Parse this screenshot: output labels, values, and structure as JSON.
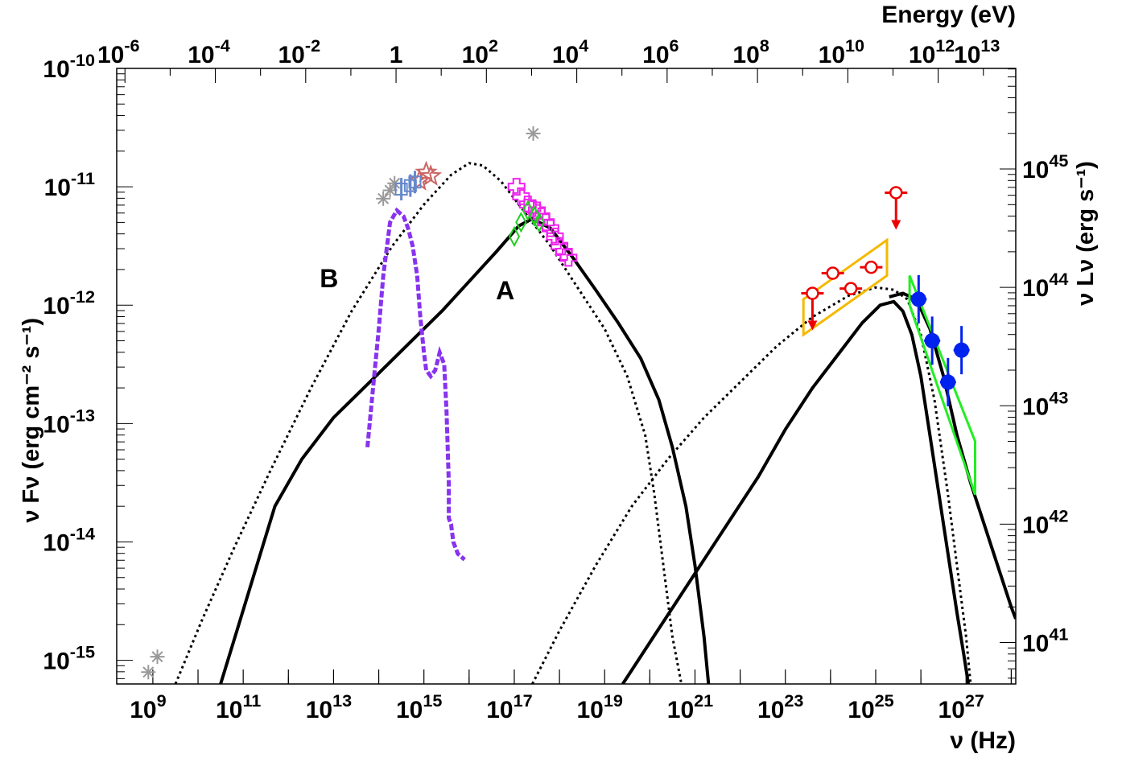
{
  "chart_data": {
    "type": "scatter",
    "title": "",
    "xlabel": "ν (Hz)",
    "ylabel": "ν Fν (erg cm⁻² s⁻¹)",
    "top_axis_label": "Energy (eV)",
    "right_axis_label": "ν Lν (erg s⁻¹)",
    "xscale": "log",
    "yscale": "log",
    "xlim_log10": [
      8.2,
      28.1
    ],
    "ylim_log10": [
      -15.2,
      -10.0
    ],
    "y2lim_log10": [
      40.65,
      45.85
    ],
    "grid": false,
    "legend": "none",
    "x_tick_labels": [
      {
        "base": "10",
        "exp": "9",
        "log": 9
      },
      {
        "base": "10",
        "exp": "11",
        "log": 11
      },
      {
        "base": "10",
        "exp": "13",
        "log": 13
      },
      {
        "base": "10",
        "exp": "15",
        "log": 15
      },
      {
        "base": "10",
        "exp": "17",
        "log": 17
      },
      {
        "base": "10",
        "exp": "19",
        "log": 19
      },
      {
        "base": "10",
        "exp": "21",
        "log": 21
      },
      {
        "base": "10",
        "exp": "23",
        "log": 23
      },
      {
        "base": "10",
        "exp": "25",
        "log": 25
      },
      {
        "base": "10",
        "exp": "27",
        "log": 27
      }
    ],
    "y_tick_labels": [
      {
        "base": "10",
        "exp": "-10",
        "log": -10
      },
      {
        "base": "10",
        "exp": "-11",
        "log": -11
      },
      {
        "base": "10",
        "exp": "-12",
        "log": -12
      },
      {
        "base": "10",
        "exp": "-13",
        "log": -13
      },
      {
        "base": "10",
        "exp": "-14",
        "log": -14
      },
      {
        "base": "10",
        "exp": "-15",
        "log": -15
      }
    ],
    "top_tick_labels": [
      {
        "base": "10",
        "exp": "-6",
        "log": -6
      },
      {
        "base": "10",
        "exp": "-4",
        "log": -4
      },
      {
        "base": "10",
        "exp": "-2",
        "log": -2
      },
      {
        "base": "1",
        "exp": "",
        "log": 0
      },
      {
        "base": "10",
        "exp": "2",
        "log": 2
      },
      {
        "base": "10",
        "exp": "4",
        "log": 4
      },
      {
        "base": "10",
        "exp": "6",
        "log": 6
      },
      {
        "base": "10",
        "exp": "8",
        "log": 8
      },
      {
        "base": "10",
        "exp": "10",
        "log": 10
      },
      {
        "base": "10",
        "exp": "12",
        "log": 12
      },
      {
        "base": "10",
        "exp": "13",
        "log": 13
      }
    ],
    "right_tick_labels": [
      {
        "base": "10",
        "exp": "45",
        "log": 45
      },
      {
        "base": "10",
        "exp": "44",
        "log": 44
      },
      {
        "base": "10",
        "exp": "43",
        "log": 43
      },
      {
        "base": "10",
        "exp": "42",
        "log": 42
      },
      {
        "base": "10",
        "exp": "41",
        "log": 41
      }
    ],
    "annotations": [
      {
        "text": "A",
        "x": 16.8,
        "y": -11.95
      },
      {
        "text": "B",
        "x": 12.9,
        "y": -11.85
      }
    ],
    "curves": [
      {
        "id": "A-sync",
        "style": "solid",
        "color": "#000000",
        "x": [
          10.5,
          10.9,
          11.3,
          11.7,
          12.3,
          13.0,
          13.8,
          14.6,
          15.4,
          16.0,
          16.6,
          17.1,
          17.4,
          17.8,
          18.3,
          18.8,
          19.3,
          19.8,
          20.2,
          20.5,
          20.8,
          21.0,
          21.2,
          21.3
        ],
        "y": [
          -15.2,
          -14.7,
          -14.2,
          -13.7,
          -13.3,
          -12.95,
          -12.65,
          -12.35,
          -12.05,
          -11.8,
          -11.55,
          -11.33,
          -11.27,
          -11.35,
          -11.6,
          -11.87,
          -12.15,
          -12.45,
          -12.8,
          -13.2,
          -13.7,
          -14.2,
          -14.8,
          -15.2
        ]
      },
      {
        "id": "A-ic",
        "style": "solid",
        "color": "#000000",
        "x": [
          19.4,
          20.0,
          20.6,
          21.2,
          21.8,
          22.4,
          23.0,
          23.6,
          24.2,
          24.7,
          25.1,
          25.4,
          25.6,
          25.8,
          26.0,
          26.2,
          26.4,
          26.6,
          26.8,
          26.95,
          27.05
        ],
        "y": [
          -15.2,
          -14.85,
          -14.5,
          -14.15,
          -13.8,
          -13.45,
          -13.05,
          -12.7,
          -12.4,
          -12.15,
          -12.0,
          -11.97,
          -12.05,
          -12.25,
          -12.6,
          -13.1,
          -13.6,
          -14.1,
          -14.6,
          -14.95,
          -15.2
        ]
      },
      {
        "id": "A-ic-upper",
        "style": "solid",
        "color": "#000000",
        "x": [
          25.3,
          25.6,
          25.9,
          26.2,
          26.5,
          26.8,
          27.1,
          27.4,
          27.7,
          28.0,
          28.1
        ],
        "y": [
          -11.93,
          -11.9,
          -11.95,
          -12.2,
          -12.6,
          -13.1,
          -13.5,
          -13.85,
          -14.2,
          -14.55,
          -14.65
        ]
      },
      {
        "id": "B-sync",
        "style": "dotted",
        "color": "#000000",
        "x": [
          9.5,
          10.1,
          10.8,
          11.6,
          12.5,
          13.4,
          14.3,
          15.0,
          15.6,
          16.0,
          16.3,
          16.7,
          17.2,
          17.8,
          18.4,
          19.0,
          19.5,
          19.9,
          20.1,
          20.3,
          20.5,
          20.7
        ],
        "y": [
          -15.2,
          -14.65,
          -14.05,
          -13.4,
          -12.7,
          -12.05,
          -11.5,
          -11.15,
          -10.9,
          -10.8,
          -10.82,
          -10.95,
          -11.2,
          -11.5,
          -11.85,
          -12.2,
          -12.6,
          -13.1,
          -13.6,
          -14.2,
          -14.8,
          -15.2
        ]
      },
      {
        "id": "B-ic",
        "style": "dotted",
        "color": "#000000",
        "x": [
          17.4,
          18.0,
          18.8,
          19.6,
          20.4,
          21.2,
          22.0,
          22.8,
          23.6,
          24.4,
          25.0,
          25.4,
          25.7,
          26.0,
          26.3,
          26.6,
          26.8,
          27.0,
          27.1
        ],
        "y": [
          -15.2,
          -14.75,
          -14.2,
          -13.7,
          -13.3,
          -12.95,
          -12.65,
          -12.35,
          -12.1,
          -11.92,
          -11.85,
          -11.87,
          -11.95,
          -12.25,
          -12.8,
          -13.6,
          -14.2,
          -14.8,
          -15.2
        ]
      }
    ],
    "series": [
      {
        "id": "radio-gray",
        "marker": "asterisk",
        "color": "#999999",
        "points": [
          {
            "x": 8.9,
            "y": -15.1
          },
          {
            "x": 9.1,
            "y": -14.97
          },
          {
            "x": 14.1,
            "y": -11.1
          },
          {
            "x": 14.25,
            "y": -11.03
          },
          {
            "x": 14.35,
            "y": -10.97
          },
          {
            "x": 17.42,
            "y": -10.55
          }
        ]
      },
      {
        "id": "optical-stars",
        "marker": "star",
        "color": "#cc6666",
        "points": [
          {
            "x": 14.9,
            "y": -10.95
          },
          {
            "x": 15.05,
            "y": -10.88
          },
          {
            "x": 15.15,
            "y": -10.91
          }
        ]
      },
      {
        "id": "optical-blue",
        "marker": "square",
        "color": "#6688cc",
        "points": [
          {
            "x": 14.5,
            "y": -11.02
          },
          {
            "x": 14.7,
            "y": -10.99
          },
          {
            "x": 14.8,
            "y": -10.96
          }
        ]
      },
      {
        "id": "xray-magenta",
        "marker": "open-cross",
        "color": "#ee22ee",
        "points": [
          {
            "x": 17.05,
            "y": -11.0
          },
          {
            "x": 17.15,
            "y": -11.08
          },
          {
            "x": 17.3,
            "y": -11.15
          },
          {
            "x": 17.4,
            "y": -11.18
          },
          {
            "x": 17.5,
            "y": -11.2
          },
          {
            "x": 17.6,
            "y": -11.25
          },
          {
            "x": 17.7,
            "y": -11.3
          },
          {
            "x": 17.8,
            "y": -11.35
          },
          {
            "x": 17.9,
            "y": -11.42
          },
          {
            "x": 18.0,
            "y": -11.5
          },
          {
            "x": 18.1,
            "y": -11.55
          },
          {
            "x": 18.2,
            "y": -11.6
          }
        ]
      },
      {
        "id": "xray-green",
        "marker": "open-diamond",
        "color": "#22cc22",
        "points": [
          {
            "x": 17.0,
            "y": -11.42
          },
          {
            "x": 17.15,
            "y": -11.3
          },
          {
            "x": 17.3,
            "y": -11.2
          },
          {
            "x": 17.45,
            "y": -11.25
          },
          {
            "x": 17.55,
            "y": -11.3
          }
        ]
      },
      {
        "id": "fermi-red",
        "marker": "open-circle",
        "color": "#ee0000",
        "points": [
          {
            "x": 23.6,
            "y": -11.9,
            "upper_limit": true
          },
          {
            "x": 24.05,
            "y": -11.73
          },
          {
            "x": 24.45,
            "y": -11.86
          },
          {
            "x": 24.9,
            "y": -11.68
          },
          {
            "x": 25.45,
            "y": -11.05,
            "upper_limit": true
          }
        ]
      },
      {
        "id": "tev-blue",
        "marker": "filled-circle",
        "color": "#0022ee",
        "points": [
          {
            "x": 25.95,
            "y": -11.95
          },
          {
            "x": 26.25,
            "y": -12.3
          },
          {
            "x": 26.6,
            "y": -12.65
          },
          {
            "x": 26.9,
            "y": -12.38
          }
        ]
      }
    ],
    "bowties": [
      {
        "id": "fermi-bowtie",
        "color": "#f5b800",
        "x": [
          23.4,
          23.4,
          25.25,
          25.25
        ],
        "y": [
          -12.25,
          -11.95,
          -11.45,
          -11.75
        ]
      },
      {
        "id": "tev-bowtie",
        "color": "#22ee22",
        "x": [
          25.75,
          25.75,
          27.2,
          27.2
        ],
        "y": [
          -12.0,
          -11.75,
          -13.15,
          -13.6
        ]
      }
    ],
    "optical_uv_track": {
      "color": "#8833ee",
      "x": [
        13.75,
        13.8,
        13.9,
        14.0,
        14.1,
        14.25,
        14.4,
        14.55,
        14.65,
        14.75,
        14.85,
        14.92,
        15.0,
        15.05,
        15.15,
        15.25,
        15.35,
        15.45,
        15.5,
        15.55,
        15.55,
        15.6,
        15.65,
        15.75,
        15.9
      ],
      "y": [
        -13.2,
        -13.0,
        -12.6,
        -12.2,
        -11.75,
        -11.3,
        -11.2,
        -11.25,
        -11.35,
        -11.5,
        -11.75,
        -12.1,
        -12.4,
        -12.55,
        -12.6,
        -12.55,
        -12.4,
        -12.5,
        -12.9,
        -13.5,
        -13.8,
        -13.85,
        -14.0,
        -14.1,
        -14.15
      ]
    }
  }
}
